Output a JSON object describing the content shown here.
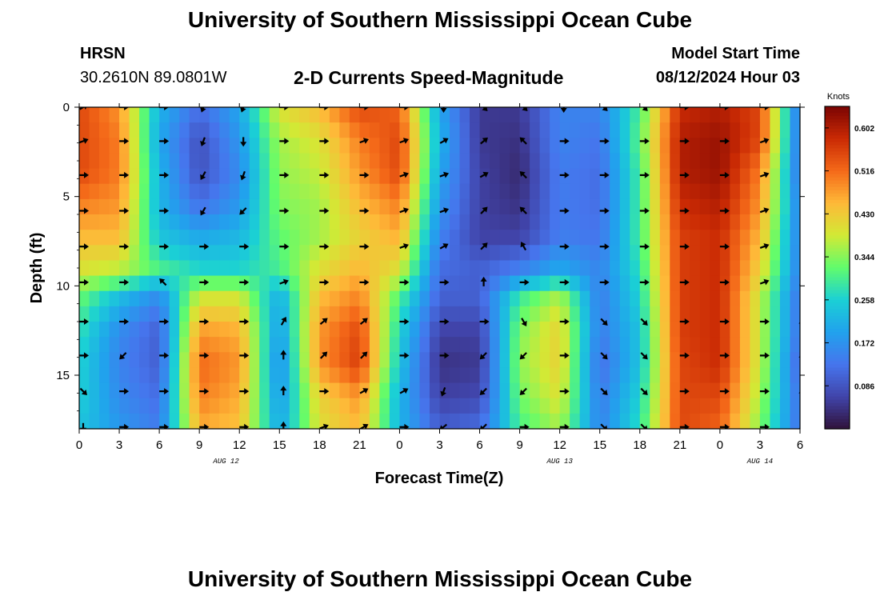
{
  "page": {
    "title": "University of Southern Mississippi Ocean Cube",
    "station": "HRSN",
    "coords": "30.2610N  89.0801W",
    "subtitle": "2-D Currents Speed-Magnitude",
    "model_label": "Model Start Time",
    "model_time": "08/12/2024 Hour 03",
    "footer_title": "University of Southern Mississippi Ocean Cube"
  },
  "chart_data": {
    "type": "heatmap",
    "title": "2-D Currents Speed-Magnitude",
    "xlabel": "Forecast Time(Z)",
    "ylabel": "Depth (ft)",
    "x_hours_range": [
      0,
      54
    ],
    "y_range": [
      0,
      18
    ],
    "x_ticks": [
      "0",
      "3",
      "6",
      "9",
      "12",
      "15",
      "18",
      "21",
      "0",
      "3",
      "6",
      "9",
      "12",
      "15",
      "18",
      "21",
      "0",
      "3",
      "6"
    ],
    "y_ticks": [
      "0",
      "5",
      "10",
      "15"
    ],
    "y_tick_values": [
      0,
      5,
      10,
      15
    ],
    "date_labels": [
      {
        "label": "AUG 12",
        "hour": 11
      },
      {
        "label": "AUG 13",
        "hour": 36
      },
      {
        "label": "AUG 14",
        "hour": 51
      }
    ],
    "colorbar": {
      "label": "Knots",
      "ticks": [
        "0.602",
        "0.516",
        "0.430",
        "0.344",
        "0.258",
        "0.172",
        "0.086"
      ],
      "tick_values": [
        0.602,
        0.516,
        0.43,
        0.344,
        0.258,
        0.172,
        0.086
      ],
      "range": [
        0.0,
        0.645
      ]
    },
    "depths": [
      0,
      1.8,
      3.6,
      5.4,
      7.2,
      9.0,
      10.8,
      12.6,
      14.4,
      16.2,
      18.0
    ],
    "times_hours": [
      0,
      3,
      6,
      9,
      12,
      15,
      18,
      21,
      24,
      27,
      30,
      33,
      36,
      39,
      42,
      45,
      48,
      51,
      54
    ],
    "speed_grid": [
      [
        0.55,
        0.48,
        0.22,
        0.12,
        0.2,
        0.4,
        0.45,
        0.55,
        0.52,
        0.2,
        0.05,
        0.05,
        0.15,
        0.15,
        0.3,
        0.58,
        0.6,
        0.55,
        0.12
      ],
      [
        0.55,
        0.5,
        0.2,
        0.08,
        0.18,
        0.36,
        0.4,
        0.5,
        0.55,
        0.22,
        0.05,
        0.04,
        0.15,
        0.13,
        0.32,
        0.6,
        0.62,
        0.55,
        0.12
      ],
      [
        0.55,
        0.5,
        0.22,
        0.08,
        0.16,
        0.35,
        0.38,
        0.48,
        0.55,
        0.2,
        0.06,
        0.03,
        0.14,
        0.12,
        0.3,
        0.6,
        0.62,
        0.5,
        0.12
      ],
      [
        0.5,
        0.48,
        0.22,
        0.12,
        0.18,
        0.34,
        0.36,
        0.45,
        0.5,
        0.18,
        0.06,
        0.04,
        0.14,
        0.12,
        0.3,
        0.58,
        0.6,
        0.48,
        0.14
      ],
      [
        0.45,
        0.45,
        0.24,
        0.2,
        0.22,
        0.32,
        0.36,
        0.42,
        0.46,
        0.15,
        0.06,
        0.06,
        0.14,
        0.13,
        0.3,
        0.56,
        0.58,
        0.45,
        0.14
      ],
      [
        0.4,
        0.38,
        0.3,
        0.26,
        0.26,
        0.3,
        0.4,
        0.45,
        0.4,
        0.12,
        0.1,
        0.14,
        0.2,
        0.15,
        0.28,
        0.56,
        0.58,
        0.42,
        0.14
      ],
      [
        0.32,
        0.22,
        0.15,
        0.4,
        0.4,
        0.2,
        0.45,
        0.5,
        0.3,
        0.1,
        0.1,
        0.3,
        0.38,
        0.14,
        0.26,
        0.56,
        0.58,
        0.38,
        0.12
      ],
      [
        0.28,
        0.16,
        0.1,
        0.48,
        0.46,
        0.18,
        0.48,
        0.55,
        0.26,
        0.06,
        0.06,
        0.34,
        0.42,
        0.14,
        0.24,
        0.56,
        0.58,
        0.38,
        0.12
      ],
      [
        0.26,
        0.15,
        0.1,
        0.52,
        0.48,
        0.16,
        0.48,
        0.56,
        0.24,
        0.04,
        0.05,
        0.35,
        0.42,
        0.12,
        0.24,
        0.55,
        0.58,
        0.38,
        0.1
      ],
      [
        0.26,
        0.16,
        0.12,
        0.5,
        0.46,
        0.18,
        0.42,
        0.48,
        0.22,
        0.06,
        0.07,
        0.33,
        0.4,
        0.14,
        0.26,
        0.55,
        0.55,
        0.36,
        0.12
      ],
      [
        0.24,
        0.18,
        0.14,
        0.46,
        0.44,
        0.2,
        0.4,
        0.45,
        0.22,
        0.1,
        0.12,
        0.3,
        0.36,
        0.15,
        0.28,
        0.55,
        0.52,
        0.34,
        0.12
      ]
    ],
    "vector_directions_deg": [
      [
        30,
        0,
        0,
        250,
        250,
        0,
        0,
        0,
        0,
        270,
        315,
        315,
        270,
        315,
        315,
        0,
        0,
        0,
        0
      ],
      [
        20,
        0,
        0,
        250,
        270,
        0,
        0,
        20,
        20,
        30,
        40,
        135,
        0,
        0,
        0,
        0,
        0,
        20,
        0
      ],
      [
        0,
        0,
        0,
        240,
        250,
        0,
        0,
        0,
        20,
        20,
        30,
        135,
        0,
        0,
        0,
        0,
        0,
        20,
        0
      ],
      [
        0,
        0,
        0,
        240,
        225,
        0,
        0,
        0,
        20,
        20,
        45,
        135,
        0,
        0,
        0,
        0,
        0,
        20,
        0
      ],
      [
        0,
        0,
        0,
        0,
        0,
        0,
        0,
        0,
        20,
        30,
        45,
        120,
        0,
        0,
        0,
        0,
        0,
        20,
        0
      ],
      [
        0,
        0,
        135,
        0,
        0,
        20,
        0,
        0,
        0,
        0,
        90,
        0,
        0,
        0,
        0,
        0,
        0,
        20,
        210
      ],
      [
        0,
        0,
        0,
        0,
        0,
        60,
        40,
        40,
        0,
        0,
        0,
        300,
        0,
        315,
        315,
        0,
        0,
        0,
        200
      ],
      [
        0,
        225,
        0,
        0,
        0,
        90,
        45,
        45,
        0,
        0,
        225,
        225,
        0,
        315,
        315,
        0,
        0,
        0,
        200
      ],
      [
        315,
        0,
        0,
        0,
        0,
        90,
        0,
        30,
        30,
        250,
        225,
        225,
        0,
        315,
        315,
        0,
        0,
        0,
        200
      ],
      [
        270,
        0,
        0,
        0,
        0,
        90,
        20,
        30,
        0,
        220,
        225,
        0,
        0,
        315,
        315,
        0,
        0,
        0,
        200
      ]
    ],
    "vector_depths": [
      0,
      1.9,
      3.8,
      5.8,
      7.8,
      9.8,
      12.0,
      13.9,
      15.9,
      17.9
    ]
  }
}
